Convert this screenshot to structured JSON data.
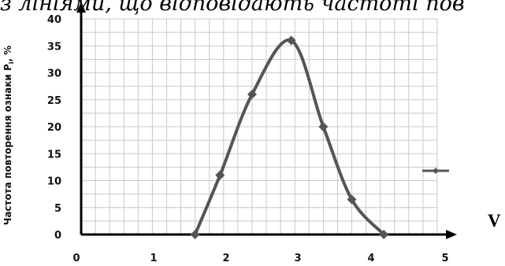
{
  "header": {
    "fragment_text": "з лініями, що відповідають частоті пов"
  },
  "side": {
    "letter": "V"
  },
  "chart_data": {
    "type": "line",
    "title": "",
    "xlabel": "",
    "ylabel_main": "Частота повторення ознаки Р",
    "ylabel_sub": "i",
    "ylabel_unit": ", %",
    "x_ticks": [
      0,
      1,
      2,
      3,
      4,
      5
    ],
    "y_ticks": [
      0,
      5,
      10,
      15,
      20,
      25,
      30,
      35,
      40
    ],
    "xlim": [
      0,
      5
    ],
    "ylim": [
      0,
      40
    ],
    "grid": true,
    "series": [
      {
        "name": "",
        "x": [
          1.6,
          1.95,
          2.4,
          2.95,
          3.4,
          3.8,
          4.25
        ],
        "y": [
          0,
          11,
          26,
          36,
          20,
          6.5,
          0
        ],
        "color": "#555555"
      }
    ],
    "legend": {
      "position": "right",
      "marker_color": "#555555"
    }
  }
}
